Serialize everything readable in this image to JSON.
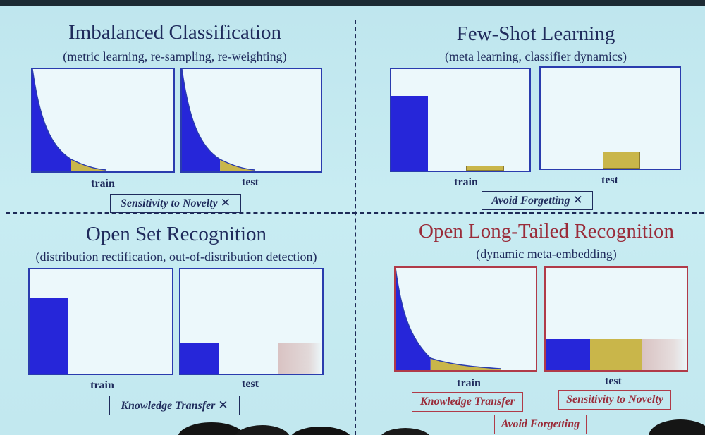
{
  "colors": {
    "blue": "#2626d9",
    "gold": "#c9b64a",
    "faded": "#d6c6c6",
    "frame": "#2a3cae",
    "accent": "#b03a48"
  },
  "panels": {
    "imbalanced": {
      "title": "Imbalanced Classification",
      "subtitle": "(metric learning, re-sampling, re-weighting)",
      "train_label": "train",
      "test_label": "test",
      "tag": "Sensitivity to Novelty",
      "tag_mark": "✕"
    },
    "fewshot": {
      "title": "Few-Shot Learning",
      "subtitle": "(meta learning, classifier dynamics)",
      "train_label": "train",
      "test_label": "test",
      "tag": "Avoid Forgetting",
      "tag_mark": "✕"
    },
    "openset": {
      "title": "Open Set Recognition",
      "subtitle": "(distribution rectification, out-of-distribution detection)",
      "train_label": "train",
      "test_label": "test",
      "tag": "Knowledge Transfer",
      "tag_mark": "✕"
    },
    "openlt": {
      "title": "Open Long-Tailed Recognition",
      "subtitle": "(dynamic meta-embedding)",
      "train_label": "train",
      "test_label": "test",
      "tags": [
        "Knowledge Transfer",
        "Sensitivity to Novelty",
        "Avoid Forgetting"
      ]
    }
  }
}
